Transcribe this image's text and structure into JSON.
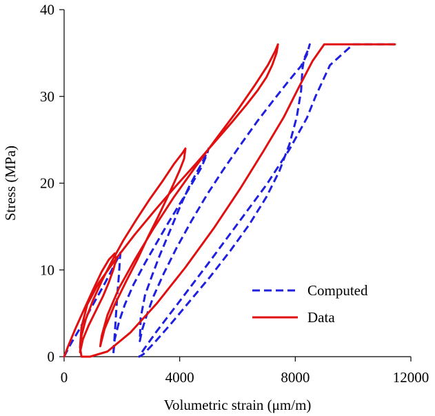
{
  "chart_data": {
    "type": "line",
    "title": "",
    "xlabel": "Volumetric strain  (μm/m)",
    "ylabel": "Stress (MPa)",
    "xlim": [
      0,
      12000
    ],
    "ylim": [
      0,
      40
    ],
    "xticks": [
      0,
      4000,
      8000,
      12000
    ],
    "yticks": [
      0,
      10,
      20,
      30,
      40
    ],
    "grid": false,
    "legend_position": "bottom-right",
    "series": [
      {
        "name": "Computed",
        "color": "#1f1fe0",
        "style": "dashed",
        "x": [
          0,
          200,
          500,
          800,
          1100,
          1400,
          1650,
          1850,
          1950,
          1930,
          1900,
          1850,
          1800,
          1750,
          1700,
          1750,
          1900,
          2100,
          2400,
          2800,
          3200,
          3600,
          4000,
          4400,
          4750,
          4950,
          5000,
          4900,
          4750,
          4550,
          4300,
          4050,
          3800,
          3550,
          3300,
          3050,
          2800,
          2650,
          2620,
          2700,
          2850,
          3100,
          3450,
          3900,
          4400,
          4950,
          5500,
          6100,
          6700,
          7300,
          7800,
          8200,
          8400,
          8500,
          8450,
          8300,
          8250,
          8200,
          8050,
          7800,
          7450,
          7000,
          6400,
          5750,
          5050,
          4350,
          3700,
          3150,
          2750,
          2600,
          2600,
          2750,
          3200,
          4000,
          5000,
          6000,
          7000,
          7800,
          8400,
          8700,
          9200,
          10000,
          11000,
          11450
        ],
        "y": [
          0,
          1.3,
          3.0,
          4.8,
          6.6,
          8.4,
          10.0,
          11.3,
          12.0,
          11.2,
          9.5,
          7.5,
          5.0,
          2.5,
          0.2,
          2.0,
          4.0,
          6.0,
          8.3,
          10.8,
          13.1,
          15.4,
          17.6,
          19.8,
          21.8,
          23.4,
          24.0,
          23.2,
          22.2,
          21.0,
          19.4,
          17.6,
          15.6,
          13.6,
          11.6,
          9.4,
          7.1,
          4.5,
          1.8,
          3.1,
          4.7,
          7.0,
          9.6,
          12.6,
          15.6,
          18.7,
          21.5,
          24.4,
          27.2,
          29.8,
          31.9,
          33.5,
          34.8,
          36.0,
          35.4,
          34.3,
          33.2,
          30.6,
          27.6,
          24.5,
          21.4,
          18.4,
          15.2,
          12.2,
          9.2,
          6.4,
          3.8,
          1.7,
          0.3,
          0,
          0,
          0.8,
          2.9,
          6.4,
          10.8,
          15.3,
          19.8,
          23.9,
          27.5,
          30.0,
          33.6,
          36.0,
          36.0,
          36.0
        ]
      },
      {
        "name": "Data",
        "color": "#e01010",
        "style": "solid",
        "x": [
          0,
          150,
          400,
          700,
          1000,
          1300,
          1550,
          1750,
          1800,
          1700,
          1550,
          1350,
          1100,
          850,
          650,
          550,
          600,
          750,
          1000,
          1300,
          1650,
          2050,
          2500,
          2950,
          3400,
          3800,
          4100,
          4200,
          4150,
          4000,
          3800,
          3550,
          3250,
          2900,
          2550,
          2150,
          1750,
          1400,
          1250,
          1300,
          1500,
          1900,
          2450,
          3100,
          3800,
          4550,
          5300,
          6000,
          6600,
          7050,
          7300,
          7400,
          7350,
          7200,
          7000,
          6700,
          6300,
          5800,
          5200,
          4550,
          3850,
          3150,
          2450,
          1800,
          1200,
          800,
          600,
          550,
          600,
          900,
          1500,
          2300,
          3200,
          4200,
          5200,
          6100,
          6900,
          7600,
          8100,
          8600,
          9000,
          10000,
          11000,
          11450
        ],
        "y": [
          0,
          1.3,
          3.3,
          5.5,
          7.7,
          9.8,
          11.2,
          11.9,
          11.2,
          10.0,
          8.6,
          7.0,
          5.3,
          3.6,
          2.0,
          0.5,
          2.4,
          4.3,
          6.5,
          8.7,
          11.0,
          13.4,
          15.8,
          18.1,
          20.2,
          22.2,
          23.5,
          24.0,
          22.8,
          21.5,
          20.0,
          18.2,
          16.1,
          13.8,
          11.3,
          8.7,
          6.0,
          3.2,
          1.2,
          2.4,
          4.8,
          7.9,
          11.2,
          14.8,
          18.4,
          21.9,
          25.3,
          28.4,
          31.3,
          33.6,
          35.2,
          36.0,
          35.0,
          33.6,
          32.2,
          30.7,
          29.0,
          27.0,
          24.7,
          22.2,
          19.6,
          16.9,
          14.1,
          11.3,
          8.5,
          6.0,
          3.4,
          1.1,
          0,
          0,
          0.6,
          2.8,
          6.1,
          10.3,
          14.9,
          19.4,
          23.7,
          27.6,
          30.9,
          34.1,
          36.0,
          36.0,
          36.0,
          36.0
        ]
      }
    ]
  }
}
